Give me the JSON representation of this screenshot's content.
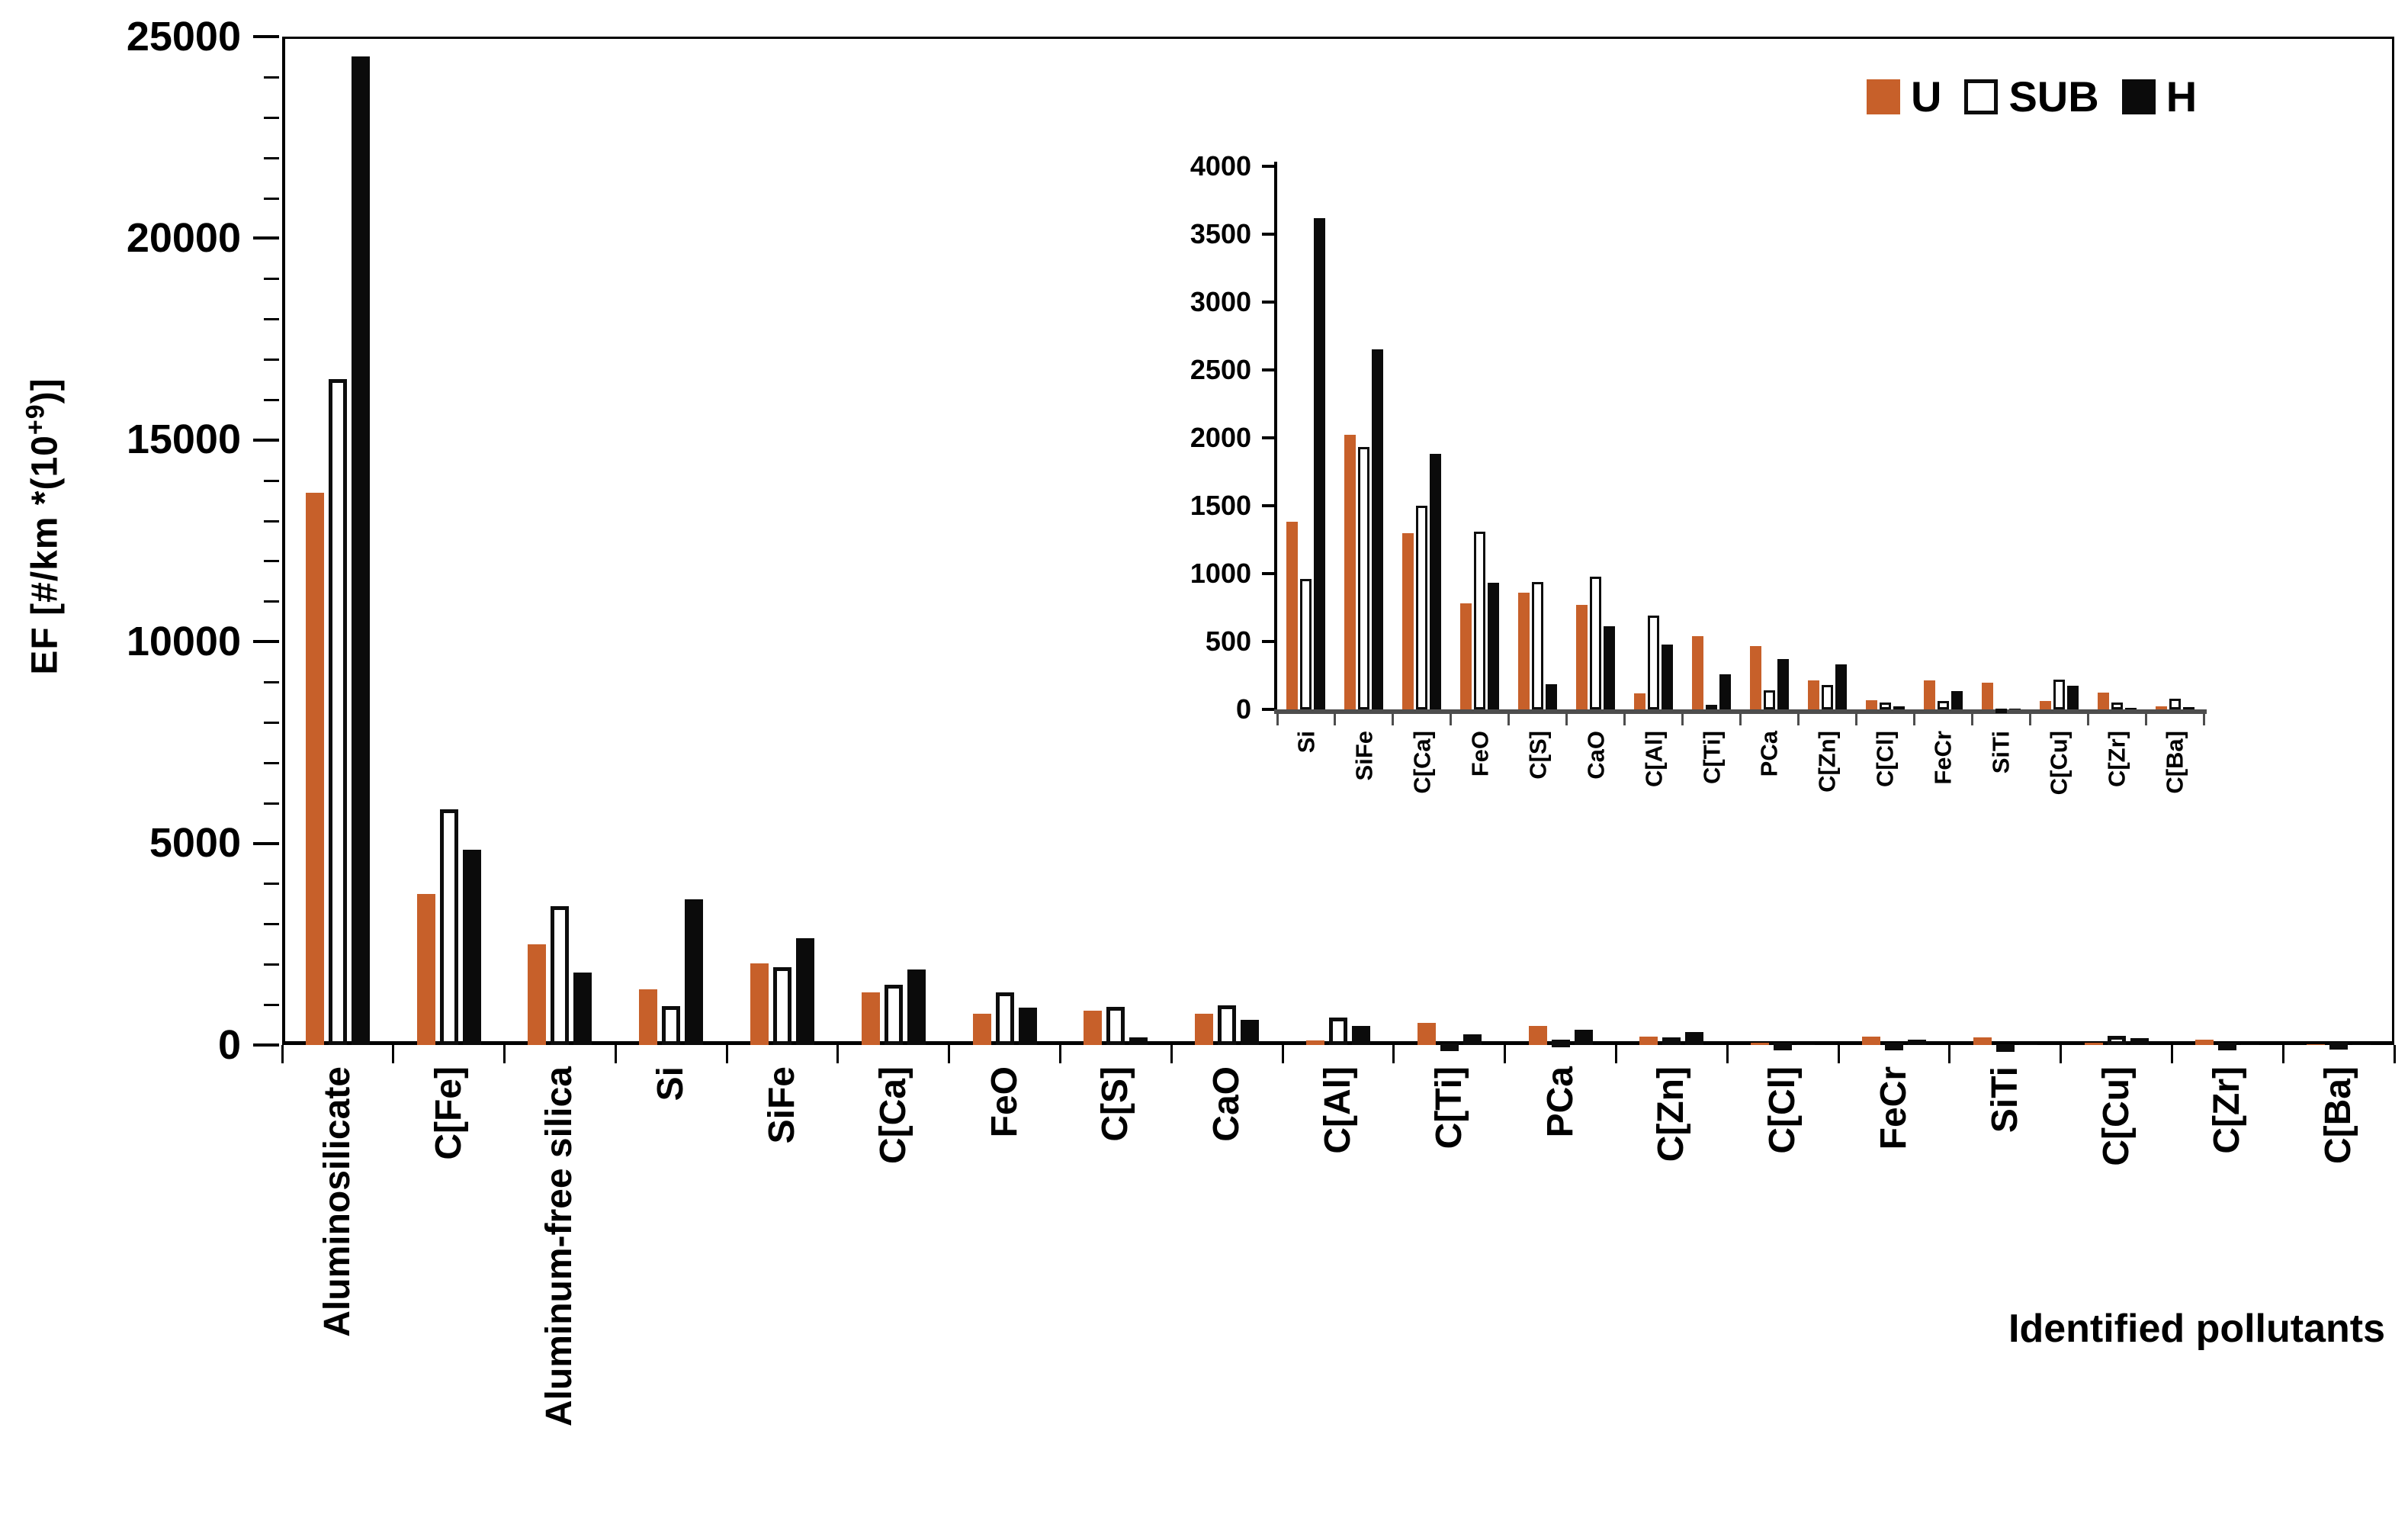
{
  "legend": {
    "items": [
      {
        "label": "U"
      },
      {
        "label": "SUB"
      },
      {
        "label": "H"
      }
    ]
  },
  "chart_data": [
    {
      "id": "main",
      "type": "bar",
      "title": "",
      "xlabel": "Identified pollutants",
      "ylabel": "EF [#/km *(10+9)]",
      "ylabel_parts": {
        "prefix": "EF [#/km *(10",
        "sup": "+9",
        "suffix": ")]"
      },
      "ylim": [
        0,
        25000
      ],
      "ytick_step": 5000,
      "yminor_step": 1000,
      "ytick_labels": [
        "25000",
        "20000",
        "15000",
        "10000",
        "5000",
        "0"
      ],
      "grid": false,
      "legend_position": "top-right",
      "categories": [
        "Aluminosilicate",
        "C[Fe]",
        "Aluminum-free silica",
        "Si",
        "SiFe",
        "C[Ca]",
        "FeO",
        "C[S]",
        "CaO",
        "C[Al]",
        "C[Ti]",
        "PCa",
        "C[Zn]",
        "C[Cl]",
        "FeCr",
        "SiTi",
        "C[Cu]",
        "C[Zr]",
        "C[Ba]"
      ],
      "series": [
        {
          "name": "U",
          "color": "#C7602A",
          "style": "solid",
          "values": [
            13700,
            3750,
            2500,
            1380,
            2020,
            1300,
            780,
            860,
            770,
            120,
            540,
            465,
            215,
            65,
            215,
            195,
            60,
            125,
            25
          ]
        },
        {
          "name": "SUB",
          "color": "#FFFFFF",
          "style": "outline",
          "values": [
            16500,
            5850,
            3450,
            960,
            1930,
            1500,
            1310,
            940,
            980,
            690,
            35,
            140,
            180,
            50,
            60,
            8,
            220,
            50,
            80
          ]
        },
        {
          "name": "H",
          "color": "#0B0B0B",
          "style": "solid",
          "values": [
            24500,
            4850,
            1800,
            3620,
            2650,
            1880,
            930,
            185,
            615,
            480,
            260,
            370,
            330,
            20,
            135,
            5,
            175,
            10,
            15
          ]
        }
      ]
    },
    {
      "id": "inset",
      "type": "bar",
      "title": "",
      "xlabel": "",
      "ylabel": "",
      "ylim": [
        0,
        4000
      ],
      "ytick_step": 500,
      "ytick_labels": [
        "4000",
        "3500",
        "3000",
        "2500",
        "2000",
        "1500",
        "1000",
        "500",
        "0"
      ],
      "grid": false,
      "categories": [
        "Si",
        "SiFe",
        "C[Ca]",
        "FeO",
        "C[S]",
        "CaO",
        "C[Al]",
        "C[Ti]",
        "PCa",
        "C[Zn]",
        "C[Cl]",
        "FeCr",
        "SiTi",
        "C[Cu]",
        "C[Zr]",
        "C[Ba]"
      ],
      "series": [
        {
          "name": "U",
          "color": "#C7602A",
          "style": "solid",
          "values": [
            1380,
            2020,
            1300,
            780,
            860,
            770,
            120,
            540,
            465,
            215,
            65,
            215,
            195,
            60,
            125,
            25
          ]
        },
        {
          "name": "SUB",
          "color": "#FFFFFF",
          "style": "outline",
          "values": [
            960,
            1930,
            1500,
            1310,
            940,
            980,
            690,
            35,
            140,
            180,
            50,
            60,
            8,
            220,
            50,
            80
          ]
        },
        {
          "name": "H",
          "color": "#0B0B0B",
          "style": "solid",
          "values": [
            3620,
            2650,
            1880,
            930,
            185,
            615,
            480,
            260,
            370,
            330,
            20,
            135,
            5,
            175,
            10,
            15
          ]
        }
      ]
    }
  ]
}
